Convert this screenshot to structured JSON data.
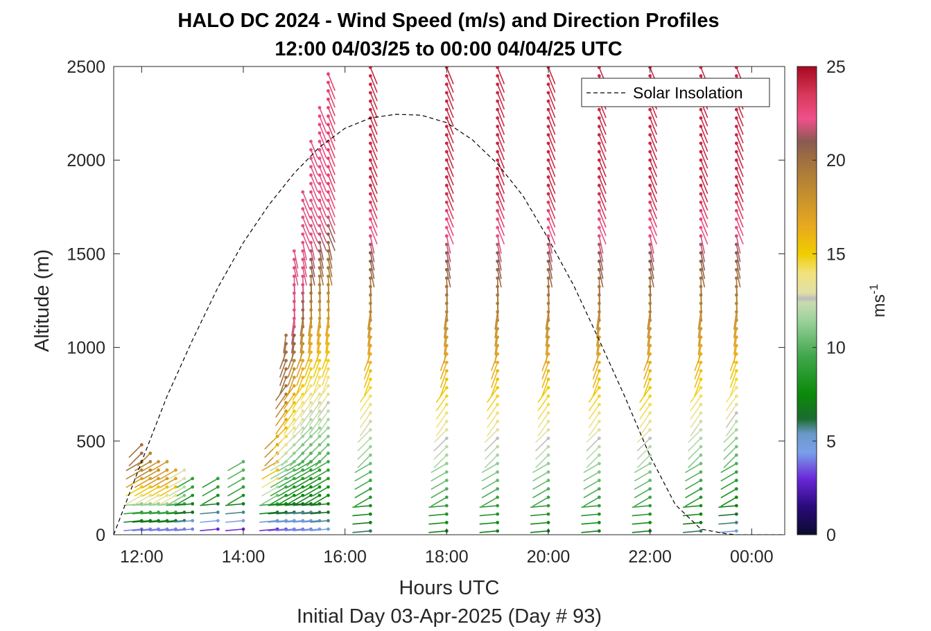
{
  "chart_data": {
    "type": "wind-barb-profile",
    "title": "HALO DC 2024 - Wind Speed (m/s) and Direction Profiles",
    "subtitle": "12:00 04/03/25 to 00:00 04/04/25  UTC",
    "xlabel": "Hours UTC",
    "xlabel2": "Initial Day 03-Apr-2025 (Day # 93)",
    "ylabel": "Altitude (m)",
    "xlim": [
      11.45,
      24.65
    ],
    "ylim": [
      0,
      2500
    ],
    "x_ticks": [
      12,
      14,
      16,
      18,
      20,
      22,
      24
    ],
    "x_tick_labels": [
      "12:00",
      "14:00",
      "16:00",
      "18:00",
      "20:00",
      "22:00",
      "00:00"
    ],
    "y_ticks": [
      0,
      500,
      1000,
      1500,
      2000,
      2500
    ],
    "y_tick_labels": [
      "0",
      "500",
      "1000",
      "1500",
      "2000",
      "2500"
    ],
    "colorbar": {
      "range": [
        0,
        25
      ],
      "ticks": [
        0,
        5,
        10,
        15,
        20,
        25
      ],
      "tick_labels": [
        "0",
        "5",
        "10",
        "15",
        "20",
        "25"
      ],
      "label_base": "ms",
      "label_exp": "-1",
      "colors": [
        {
          "v": 0,
          "c": "#0b0b2e"
        },
        {
          "v": 1.5,
          "c": "#2a0a7a"
        },
        {
          "v": 3,
          "c": "#6a28d8"
        },
        {
          "v": 4.4,
          "c": "#7aa0ea"
        },
        {
          "v": 5.4,
          "c": "#6a98c8"
        },
        {
          "v": 6.2,
          "c": "#1b6b2e"
        },
        {
          "v": 7.5,
          "c": "#0a8a0a"
        },
        {
          "v": 9.5,
          "c": "#3fa64a"
        },
        {
          "v": 11.5,
          "c": "#9ed39e"
        },
        {
          "v": 12.4,
          "c": "#c8dcb0"
        },
        {
          "v": 12.6,
          "c": "#bcbcbc"
        },
        {
          "v": 12.9,
          "c": "#e0e0a8"
        },
        {
          "v": 14,
          "c": "#f2e27a"
        },
        {
          "v": 15,
          "c": "#f0cc00"
        },
        {
          "v": 16.5,
          "c": "#e8a820"
        },
        {
          "v": 18,
          "c": "#c8922c"
        },
        {
          "v": 20,
          "c": "#a07040"
        },
        {
          "v": 21,
          "c": "#8a5a52"
        },
        {
          "v": 22.2,
          "c": "#f0508a"
        },
        {
          "v": 23.5,
          "c": "#d8385a"
        },
        {
          "v": 25,
          "c": "#a8081e"
        }
      ]
    },
    "legend": {
      "label": "Solar Insolation",
      "style": "dashed",
      "color": "#000000",
      "location": "top-right"
    },
    "solar_insolation": {
      "x": [
        11.45,
        12.0,
        12.5,
        13.0,
        13.5,
        14.0,
        14.5,
        15.0,
        15.5,
        16.0,
        16.5,
        17.0,
        17.5,
        18.0,
        18.5,
        19.0,
        19.5,
        20.0,
        20.5,
        21.0,
        21.5,
        22.0,
        22.5,
        23.0,
        23.5,
        23.7,
        24.65
      ],
      "y": [
        0,
        390,
        740,
        1040,
        1320,
        1560,
        1760,
        1930,
        2070,
        2170,
        2225,
        2245,
        2240,
        2200,
        2110,
        1980,
        1810,
        1580,
        1330,
        1040,
        740,
        420,
        160,
        30,
        5,
        0,
        0
      ]
    },
    "wind_columns": {
      "dt_hours": 0.17,
      "dz_m": 45,
      "barb_angle_deg_from_east": [
        185,
        210,
        225,
        235,
        250,
        262,
        272,
        282,
        292
      ],
      "columns": [
        {
          "t": 12.0,
          "z_min": 30,
          "z_max": 500,
          "speed_low": 4,
          "speed_high": 20
        },
        {
          "t": 12.33,
          "z_min": 30,
          "z_max": 420,
          "speed_low": 4,
          "speed_high": 18
        },
        {
          "t": 12.67,
          "z_min": 30,
          "z_max": 380,
          "speed_low": 4,
          "speed_high": 17
        },
        {
          "t": 13.0,
          "z_min": 30,
          "z_max": 340,
          "speed_low": 4,
          "speed_high": 9
        },
        {
          "t": 13.5,
          "z_min": 30,
          "z_max": 340,
          "speed_low": 3,
          "speed_high": 9
        },
        {
          "t": 14.0,
          "z_min": 30,
          "z_max": 400,
          "speed_low": 3,
          "speed_high": 10
        },
        {
          "t": 14.67,
          "z_min": 30,
          "z_max": 560,
          "speed_low": 3,
          "speed_high": 18
        },
        {
          "t": 15.0,
          "z_min": 30,
          "z_max": 1550,
          "speed_low": 4,
          "speed_high": 22
        },
        {
          "t": 15.33,
          "z_min": 30,
          "z_max": 2100,
          "speed_low": 4,
          "speed_high": 22
        },
        {
          "t": 15.67,
          "z_min": 30,
          "z_max": 2500,
          "speed_low": 5,
          "speed_high": 23
        },
        {
          "t": 16.5,
          "z_min": 20,
          "z_max": 2500,
          "speed_low": 6,
          "speed_high": 24
        },
        {
          "t": 18.0,
          "z_min": 20,
          "z_max": 2500,
          "speed_low": 7,
          "speed_high": 24
        },
        {
          "t": 19.0,
          "z_min": 20,
          "z_max": 2500,
          "speed_low": 7,
          "speed_high": 24
        },
        {
          "t": 20.0,
          "z_min": 20,
          "z_max": 2500,
          "speed_low": 7,
          "speed_high": 24
        },
        {
          "t": 21.0,
          "z_min": 20,
          "z_max": 2500,
          "speed_low": 7,
          "speed_high": 24
        },
        {
          "t": 22.0,
          "z_min": 20,
          "z_max": 2500,
          "speed_low": 7,
          "speed_high": 24
        },
        {
          "t": 23.0,
          "z_min": 20,
          "z_max": 2500,
          "speed_low": 6,
          "speed_high": 24
        },
        {
          "t": 23.7,
          "z_min": 20,
          "z_max": 2500,
          "speed_low": 5,
          "speed_high": 24
        }
      ]
    }
  }
}
